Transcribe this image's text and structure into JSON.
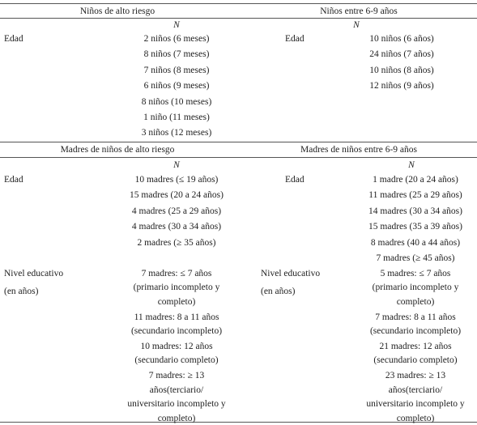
{
  "part1": {
    "left_header": "Niños de alto riesgo",
    "right_header": "Niños entre 6-9 años",
    "left_n": "N",
    "right_n": "N",
    "left": {
      "label": "Edad",
      "values": [
        "2 niños (6 meses)",
        "8 niños (7 meses)",
        "7 niños (8 meses)",
        "6 niños (9 meses)",
        "8 niños (10 meses)",
        "1 niño (11 meses)",
        "3 niños (12 meses)"
      ]
    },
    "right": {
      "label": "Edad",
      "values": [
        "10 niños (6 años)",
        "24 niños (7 años)",
        "10 niños (8 años)",
        "12 niños (9 años)"
      ]
    }
  },
  "part2": {
    "left_header": "Madres de niños de alto riesgo",
    "right_header": "Madres de niños entre 6-9 años",
    "left_n": "N",
    "right_n": "N",
    "left_age": {
      "label": "Edad",
      "values": [
        "10 madres (≤ 19 años)",
        "15 madres (20 a 24 años)",
        "4 madres (25 a 29 años)",
        "4 madres (30 a 34 años)",
        "2 madres (≥ 35 años)"
      ]
    },
    "right_age": {
      "label": "Edad",
      "values": [
        "1 madre (20 a 24 años)",
        "11 madres (25 a 29 años)",
        "14 madres (30 a 34 años)",
        "15 madres (35 a 39 años)",
        "8 madres (40 a 44 años)",
        "7 madres (≥ 45 años)"
      ]
    },
    "left_edu": {
      "label": "Nivel educativo",
      "sublabel": "(en años)",
      "values": [
        [
          "7 madres: ≤ 7 años",
          "(primario incompleto y",
          "completo)"
        ],
        [
          "11 madres: 8 a 11 años",
          "(secundario incompleto)"
        ],
        [
          "10 madres: 12 años",
          "(secundario completo)"
        ],
        [
          "7 madres: ≥ 13",
          "años(terciario/",
          "universitario incompleto y",
          "completo)"
        ]
      ]
    },
    "right_edu": {
      "label": "Nivel educativo",
      "sublabel": "(en años)",
      "values": [
        [
          "5 madres: ≤ 7 años",
          "(primario incompleto y",
          "completo)"
        ],
        [
          "7 madres: 8 a 11 años",
          "(secundario incompleto)"
        ],
        [
          "21 madres: 12 años",
          "(secundario completo)"
        ],
        [
          "23 madres: ≥ 13",
          "años(terciario/",
          "universitario incompleto y",
          "completo)"
        ]
      ]
    }
  }
}
